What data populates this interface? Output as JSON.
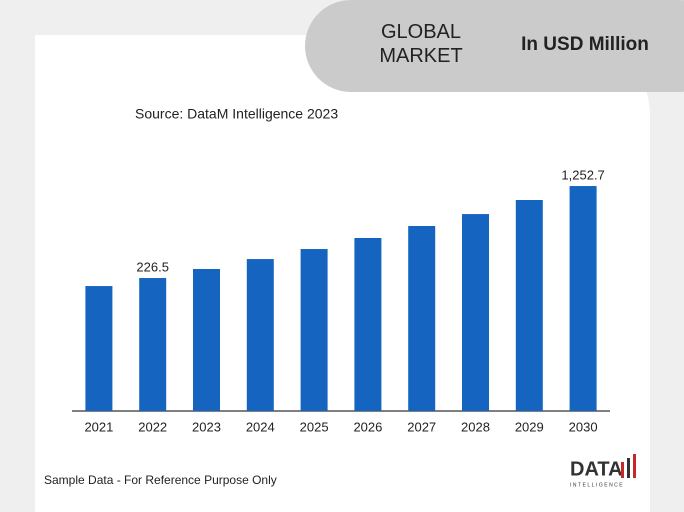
{
  "chart_data": {
    "type": "bar",
    "title": "GLOBAL MARKET",
    "unit": "In USD Million",
    "subtitle": "Source: DataM Intelligence  2023",
    "footnote": "Sample Data - For Reference Purpose Only",
    "logo": "DATA",
    "logo_subtitle": "INTELLIGENCE",
    "categories": [
      "2021",
      "2022",
      "2023",
      "2024",
      "2025",
      "2026",
      "2027",
      "2028",
      "2029",
      "2030"
    ],
    "values": [
      137,
      226.5,
      327,
      438,
      550,
      673,
      807,
      940,
      1097,
      1252.7
    ],
    "value_labels": [
      null,
      "226.5",
      null,
      null,
      null,
      null,
      null,
      null,
      null,
      "1,252.7"
    ],
    "color": "#1565c0",
    "ylim": [
      -1257,
      1532
    ]
  }
}
